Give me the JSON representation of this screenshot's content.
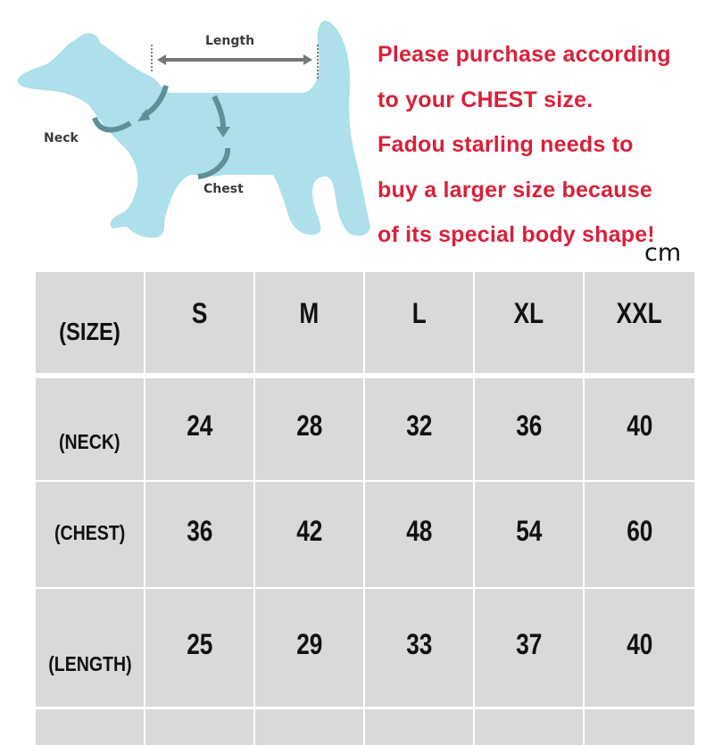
{
  "diagram": {
    "labels": {
      "length": "Length",
      "neck": "Neck",
      "chest": "Chest"
    },
    "dog_color": "#ade0ea",
    "arrow_color": "#5f8f99"
  },
  "notice": {
    "lines": [
      "Please purchase according",
      "to your CHEST size.",
      "Fadou starling needs to",
      "buy a larger size because",
      "of its special body shape!"
    ],
    "color": "#d8213b"
  },
  "unit": "cm",
  "size_table": {
    "header": [
      "(SIZE)",
      "S",
      "M",
      "L",
      "XL",
      "XXL"
    ],
    "rows": [
      {
        "label": "(NECK)",
        "values": [
          "24",
          "28",
          "32",
          "36",
          "40"
        ]
      },
      {
        "label": "(CHEST)",
        "values": [
          "36",
          "42",
          "48",
          "54",
          "60"
        ]
      },
      {
        "label": "(LENGTH)",
        "values": [
          "25",
          "29",
          "33",
          "37",
          "40"
        ]
      }
    ],
    "cell_color": "#d9d9d9"
  }
}
